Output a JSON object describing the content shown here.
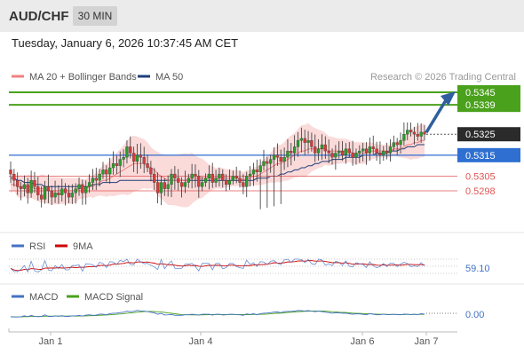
{
  "header": {
    "symbol": "AUD/CHF",
    "timeframe": "30 MIN"
  },
  "datetime": "Tuesday, January 6, 2026 10:37:45 AM CET",
  "legend": {
    "ma20": "MA 20 + Bollinger Bands",
    "ma50": "MA 50",
    "ma20_color": "#f08080",
    "ma50_color": "#1f3f7a"
  },
  "credit": "Research © 2026 Trading Central",
  "colors": {
    "resistance": "#4aa11c",
    "support_primary": "#2e6fd1",
    "support_secondary": "#e05555",
    "up": "#2a9d2a",
    "down": "#d43c3c",
    "band": "#fad4d4"
  },
  "chart_data": [
    {
      "type": "candlestick",
      "title": "AUD/CHF",
      "timeframe": "30 MIN",
      "x_ticks": [
        "Jan 1",
        "Jan 4",
        "Jan 6",
        "Jan 7"
      ],
      "current_price": 0.5325,
      "forecast_arrow": {
        "from": 0.5325,
        "to": 0.5345
      },
      "levels": [
        {
          "value": 0.5345,
          "label": "0.5345",
          "kind": "resistance"
        },
        {
          "value": 0.5339,
          "label": "0.5339",
          "kind": "resistance"
        },
        {
          "value": 0.5325,
          "label": "0.5325",
          "kind": "last"
        },
        {
          "value": 0.5315,
          "label": "0.5315",
          "kind": "support"
        },
        {
          "value": 0.5305,
          "label": "0.5305",
          "kind": "support"
        },
        {
          "value": 0.5298,
          "label": "0.5298",
          "kind": "support"
        }
      ],
      "close": [
        0.5306,
        0.5303,
        0.53,
        0.5299,
        0.5301,
        0.5297,
        0.5303,
        0.53,
        0.5296,
        0.5294,
        0.53,
        0.5298,
        0.5295,
        0.5297,
        0.5296,
        0.5299,
        0.5297,
        0.5295,
        0.5297,
        0.5299,
        0.5301,
        0.5297,
        0.53,
        0.5302,
        0.5304,
        0.5303,
        0.5306,
        0.5308,
        0.5306,
        0.5309,
        0.5311,
        0.531,
        0.5313,
        0.5314,
        0.5319,
        0.5316,
        0.5312,
        0.5315,
        0.5314,
        0.5311,
        0.5309,
        0.5306,
        0.5302,
        0.5297,
        0.5302,
        0.5299,
        0.5301,
        0.5306,
        0.5304,
        0.5302,
        0.53,
        0.5302,
        0.5304,
        0.5306,
        0.5305,
        0.53,
        0.5302,
        0.5304,
        0.5306,
        0.5302,
        0.5304,
        0.5306,
        0.5303,
        0.5301,
        0.5303,
        0.5305,
        0.5304,
        0.5302,
        0.53,
        0.5305,
        0.5306,
        0.5308,
        0.5307,
        0.531,
        0.5312,
        0.5311,
        0.5313,
        0.5315,
        0.5314,
        0.5312,
        0.5314,
        0.5317,
        0.5316,
        0.5319,
        0.5322,
        0.5323,
        0.5321,
        0.5322,
        0.5319,
        0.5316,
        0.5318,
        0.532,
        0.5317,
        0.5316,
        0.5314,
        0.5316,
        0.5317,
        0.5315,
        0.5318,
        0.5316,
        0.5314,
        0.5316,
        0.5317,
        0.5318,
        0.5316,
        0.5319,
        0.5318,
        0.5316,
        0.5315,
        0.5317,
        0.5316,
        0.5319,
        0.5321,
        0.532,
        0.5322,
        0.5325,
        0.5327,
        0.5326,
        0.5325,
        0.5324,
        0.5326,
        0.5325
      ],
      "ma20": [
        0.5301,
        0.5301,
        0.53,
        0.53,
        0.53,
        0.53,
        0.53,
        0.5299,
        0.5299,
        0.5299,
        0.5299,
        0.5298,
        0.5298,
        0.5298,
        0.5298,
        0.5298,
        0.5298,
        0.5298,
        0.5298,
        0.5298,
        0.5299,
        0.5299,
        0.5299,
        0.53,
        0.53,
        0.5301,
        0.5302,
        0.5303,
        0.5303,
        0.5304,
        0.5305,
        0.5306,
        0.5307,
        0.5308,
        0.5309,
        0.531,
        0.5311,
        0.5311,
        0.5311,
        0.5311,
        0.531,
        0.5309,
        0.5308,
        0.5306,
        0.5305,
        0.5304,
        0.5303,
        0.5303,
        0.5303,
        0.5303,
        0.5303,
        0.5303,
        0.5303,
        0.5304,
        0.5304,
        0.5304,
        0.5304,
        0.5304,
        0.5304,
        0.5304,
        0.5304,
        0.5304,
        0.5304,
        0.5304,
        0.5304,
        0.5304,
        0.5304,
        0.5304,
        0.5303,
        0.5304,
        0.5304,
        0.5305,
        0.5305,
        0.5306,
        0.5307,
        0.5308,
        0.5309,
        0.531,
        0.5311,
        0.5311,
        0.5312,
        0.5313,
        0.5314,
        0.5315,
        0.5316,
        0.5317,
        0.5317,
        0.5318,
        0.5318,
        0.5318,
        0.5318,
        0.5318,
        0.5318,
        0.5317,
        0.5317,
        0.5317,
        0.5317,
        0.5317,
        0.5317,
        0.5317,
        0.5316,
        0.5316,
        0.5316,
        0.5316,
        0.5316,
        0.5317,
        0.5317,
        0.5317,
        0.5317,
        0.5317,
        0.5317,
        0.5317,
        0.5318,
        0.5318,
        0.5318,
        0.5319,
        0.532,
        0.532,
        0.5321,
        0.5321,
        0.5322,
        0.5322
      ],
      "ma50": [
        0.5304,
        0.5304,
        0.5303,
        0.5303,
        0.5302,
        0.5302,
        0.5302,
        0.5301,
        0.5301,
        0.5301,
        0.53,
        0.53,
        0.53,
        0.53,
        0.53,
        0.53,
        0.53,
        0.53,
        0.53,
        0.53,
        0.53,
        0.53,
        0.53,
        0.53,
        0.5301,
        0.5301,
        0.5301,
        0.5302,
        0.5302,
        0.5302,
        0.5302,
        0.5302,
        0.5303,
        0.5303,
        0.5303,
        0.5303,
        0.5303,
        0.5303,
        0.5303,
        0.5303,
        0.5303,
        0.5303,
        0.5303,
        0.5303,
        0.5303,
        0.5303,
        0.5303,
        0.5303,
        0.5303,
        0.5303,
        0.5303,
        0.5303,
        0.5303,
        0.5303,
        0.5303,
        0.5303,
        0.5303,
        0.5303,
        0.5303,
        0.5303,
        0.5303,
        0.5303,
        0.5303,
        0.5303,
        0.5303,
        0.5303,
        0.5303,
        0.5303,
        0.5303,
        0.5303,
        0.5303,
        0.5303,
        0.5304,
        0.5304,
        0.5304,
        0.5304,
        0.5305,
        0.5305,
        0.5305,
        0.5306,
        0.5306,
        0.5307,
        0.5307,
        0.5308,
        0.5308,
        0.5309,
        0.5309,
        0.531,
        0.531,
        0.5311,
        0.5311,
        0.5312,
        0.5312,
        0.5312,
        0.5313,
        0.5313,
        0.5313,
        0.5313,
        0.5314,
        0.5314,
        0.5314,
        0.5314,
        0.5314,
        0.5315,
        0.5315,
        0.5315,
        0.5315,
        0.5316,
        0.5316,
        0.5316,
        0.5316,
        0.5317,
        0.5317,
        0.5317,
        0.5318,
        0.5318,
        0.5319,
        0.5319,
        0.5319,
        0.532,
        0.532,
        0.532
      ]
    },
    {
      "type": "line",
      "title": "RSI",
      "series": [
        {
          "name": "RSI",
          "color": "#4472c4"
        },
        {
          "name": "9MA",
          "color": "#cc0000"
        }
      ],
      "last_value": 59.1,
      "last_label": "59.10",
      "levels": [
        70,
        50,
        30
      ]
    },
    {
      "type": "line",
      "title": "MACD",
      "series": [
        {
          "name": "MACD",
          "color": "#4472c4"
        },
        {
          "name": "MACD Signal",
          "color": "#4aa11c"
        }
      ],
      "last_value": 0.0,
      "last_label": "0.00"
    }
  ]
}
